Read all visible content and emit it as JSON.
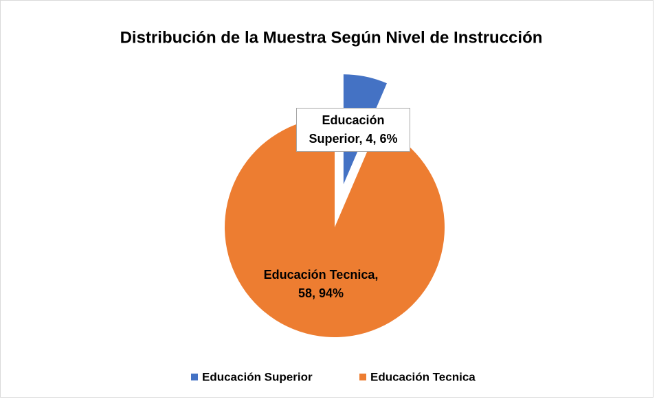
{
  "chart_data": {
    "type": "pie",
    "title": "Distribución de la Muestra Según Nivel de Instrucción",
    "categories": [
      "Educación Superior",
      "Educación Tecnica"
    ],
    "values": [
      4,
      58
    ],
    "value_labels": [
      "Educación Superior, 4, 6%",
      "Educación Tecnica, 58, 94%"
    ],
    "colors": [
      "#4472c4",
      "#ed7d31"
    ],
    "exploded": [
      true,
      false
    ],
    "legend": "bottom"
  }
}
